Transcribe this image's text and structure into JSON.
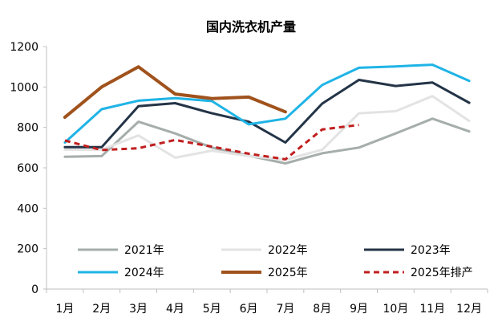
{
  "chart_data": {
    "type": "line",
    "title": "国内洗衣机产量",
    "xlabel": "",
    "ylabel": "",
    "categories": [
      "1月",
      "2月",
      "3月",
      "4月",
      "5月",
      "6月",
      "7月",
      "8月",
      "9月",
      "10月",
      "11月",
      "12月"
    ],
    "ylim": [
      0,
      1200
    ],
    "yticks": [
      "0",
      "200",
      "400",
      "600",
      "800",
      "1000",
      "1200"
    ],
    "grid": false,
    "legend_position": "bottom",
    "series": [
      {
        "name": "2021年",
        "color": "#a6aeab",
        "dash": "solid",
        "width": 3,
        "values": [
          655,
          658,
          828,
          770,
          700,
          660,
          622,
          672,
          700,
          770,
          843,
          780
        ]
      },
      {
        "name": "2022年",
        "color": "#e3e3e3",
        "dash": "solid",
        "width": 3,
        "values": [
          690,
          690,
          760,
          650,
          685,
          658,
          640,
          690,
          870,
          880,
          955,
          832
        ]
      },
      {
        "name": "2023年",
        "color": "#243447",
        "dash": "solid",
        "width": 3,
        "values": [
          702,
          702,
          905,
          920,
          870,
          828,
          725,
          918,
          1035,
          1005,
          1022,
          922
        ]
      },
      {
        "name": "2024年",
        "color": "#1fb4e6",
        "dash": "solid",
        "width": 3,
        "values": [
          725,
          890,
          932,
          945,
          930,
          815,
          843,
          1010,
          1095,
          1102,
          1110,
          1030
        ]
      },
      {
        "name": "2025年",
        "color": "#a0521c",
        "dash": "solid",
        "width": 4,
        "values": [
          850,
          1000,
          1100,
          965,
          943,
          950,
          877,
          null,
          null,
          null,
          null,
          null
        ]
      },
      {
        "name": "2025年排产",
        "color": "#c01f1f",
        "dash": "dashed",
        "width": 3,
        "values": [
          735,
          688,
          697,
          738,
          705,
          670,
          642,
          790,
          812,
          null,
          null,
          null
        ]
      }
    ]
  }
}
